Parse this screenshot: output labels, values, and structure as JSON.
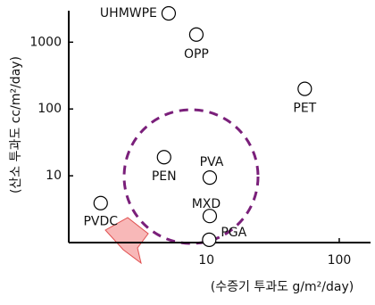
{
  "chart_data": {
    "type": "scatter",
    "x_label": "(수증기 투과도 g/m²/day)",
    "y_label": "(산소 투과도 cc/m²/day)",
    "labels": [
      "UHMWPE",
      "OPP",
      "PET",
      "PEN",
      "PVA",
      "MXD",
      "PGA",
      "PVDC"
    ],
    "x": [
      5.2,
      8.4,
      55,
      4.8,
      10.6,
      10.6,
      10.5,
      1.6
    ],
    "y": [
      2700,
      1300,
      200,
      19,
      9.4,
      2.5,
      1.1,
      3.9
    ],
    "xscale": "log",
    "yscale": "log",
    "xlim": [
      0.92,
      172
    ],
    "ylim": [
      1,
      2700
    ],
    "xticks": [
      10,
      100
    ],
    "yticks": [
      10,
      100,
      1000
    ],
    "grid": false,
    "marker_color": "#000000"
  }
}
